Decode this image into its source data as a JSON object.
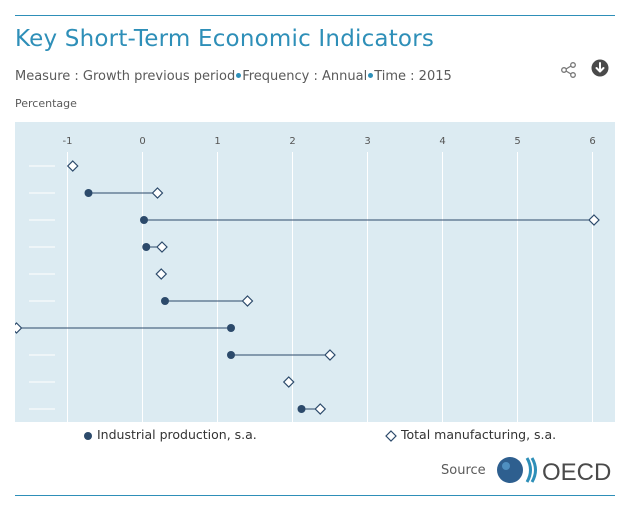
{
  "header": {
    "title": "Key Short-Term Economic Indicators",
    "measure": "Measure : Growth previous period",
    "frequency": "Frequency : Annual",
    "time": "Time : 2015",
    "share_icon": "share-icon",
    "download_icon": "download-icon"
  },
  "unit_label": "Percentage",
  "colors": {
    "accent": "#2e8fb8",
    "series1": "#2c4a6b",
    "series2": "#2c4a6b",
    "plot_bg": "#dcebf2"
  },
  "chart_data": {
    "type": "scatter",
    "style": "dumbbell",
    "orientation": "horizontal",
    "title": "",
    "xlabel": "",
    "ylabel": "",
    "xlim": [
      -1.7,
      6.3
    ],
    "xticks": [
      "-1",
      "0",
      "1",
      "2",
      "3",
      "4",
      "5",
      "6"
    ],
    "grid": true,
    "legend_position": "bottom",
    "categories": [
      "",
      "",
      "",
      "",
      "",
      "",
      "",
      "",
      "",
      ""
    ],
    "series": [
      {
        "name": "Industrial production, s.a.",
        "marker": "circle",
        "values": [
          null,
          -0.72,
          0.02,
          0.05,
          null,
          0.3,
          1.18,
          1.18,
          null,
          2.12
        ]
      },
      {
        "name": "Total manufacturing, s.a.",
        "marker": "diamond",
        "values": [
          -0.93,
          0.2,
          6.02,
          0.26,
          0.25,
          1.4,
          -1.68,
          2.5,
          1.95,
          2.37
        ]
      }
    ]
  },
  "footer": {
    "source_label": "Source",
    "logo_text": "OECD"
  }
}
